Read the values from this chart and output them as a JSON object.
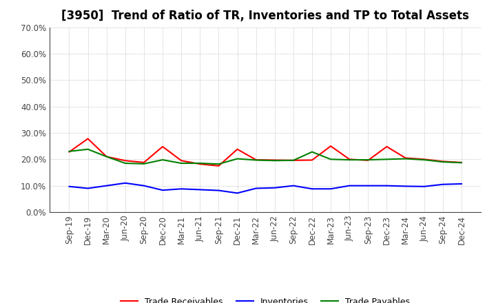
{
  "title": "[3950]  Trend of Ratio of TR, Inventories and TP to Total Assets",
  "x_labels": [
    "Sep-19",
    "Dec-19",
    "Mar-20",
    "Jun-20",
    "Sep-20",
    "Dec-20",
    "Mar-21",
    "Jun-21",
    "Sep-21",
    "Dec-21",
    "Mar-22",
    "Jun-22",
    "Sep-22",
    "Dec-22",
    "Mar-23",
    "Jun-23",
    "Sep-23",
    "Dec-23",
    "Mar-24",
    "Jun-24",
    "Sep-24",
    "Dec-24"
  ],
  "trade_receivables": [
    0.228,
    0.278,
    0.21,
    0.195,
    0.188,
    0.248,
    0.195,
    0.182,
    0.175,
    0.238,
    0.198,
    0.197,
    0.196,
    0.197,
    0.25,
    0.2,
    0.196,
    0.248,
    0.205,
    0.2,
    0.192,
    0.188
  ],
  "inventories": [
    0.097,
    0.09,
    0.1,
    0.11,
    0.1,
    0.083,
    0.088,
    0.085,
    0.082,
    0.072,
    0.09,
    0.092,
    0.1,
    0.088,
    0.088,
    0.1,
    0.1,
    0.1,
    0.098,
    0.097,
    0.105,
    0.107
  ],
  "trade_payables": [
    0.23,
    0.238,
    0.21,
    0.185,
    0.183,
    0.198,
    0.185,
    0.185,
    0.182,
    0.202,
    0.197,
    0.195,
    0.196,
    0.228,
    0.2,
    0.198,
    0.198,
    0.2,
    0.202,
    0.198,
    0.19,
    0.187
  ],
  "ylim": [
    0.0,
    0.7
  ],
  "yticks": [
    0.0,
    0.1,
    0.2,
    0.3,
    0.4,
    0.5,
    0.6,
    0.7
  ],
  "line_colors": {
    "trade_receivables": "#ff0000",
    "inventories": "#0000ff",
    "trade_payables": "#008000"
  },
  "legend_labels": [
    "Trade Receivables",
    "Inventories",
    "Trade Payables"
  ],
  "fig_background": "#ffffff",
  "plot_background": "#ffffff",
  "grid_color": "#999999",
  "spine_color": "#444444",
  "tick_color": "#444444",
  "title_fontsize": 12,
  "tick_fontsize": 8.5,
  "legend_fontsize": 9,
  "linewidth": 1.5
}
